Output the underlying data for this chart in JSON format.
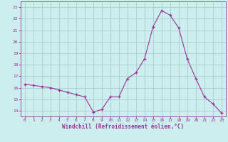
{
  "hours": [
    0,
    1,
    2,
    3,
    4,
    5,
    6,
    7,
    8,
    9,
    10,
    11,
    12,
    13,
    14,
    15,
    16,
    17,
    18,
    19,
    20,
    21,
    22,
    23
  ],
  "values": [
    16.3,
    16.2,
    16.1,
    16.0,
    15.8,
    15.6,
    15.4,
    15.2,
    13.9,
    14.1,
    15.2,
    15.2,
    16.8,
    17.3,
    18.5,
    21.3,
    22.7,
    22.3,
    21.2,
    18.5,
    16.8,
    15.2,
    14.6,
    13.8
  ],
  "line_color": "#993399",
  "marker": "+",
  "bg_color": "#cceeee",
  "grid_color": "#aacccc",
  "tick_color": "#993399",
  "xlabel": "Windchill (Refroidissement éolien,°C)",
  "xlabel_color": "#993399",
  "ylim": [
    13.5,
    23.5
  ],
  "xlim": [
    -0.5,
    23.5
  ],
  "yticks": [
    14,
    15,
    16,
    17,
    18,
    19,
    20,
    21,
    22,
    23
  ],
  "xticks": [
    0,
    1,
    2,
    3,
    4,
    5,
    6,
    7,
    8,
    9,
    10,
    11,
    12,
    13,
    14,
    15,
    16,
    17,
    18,
    19,
    20,
    21,
    22,
    23
  ]
}
